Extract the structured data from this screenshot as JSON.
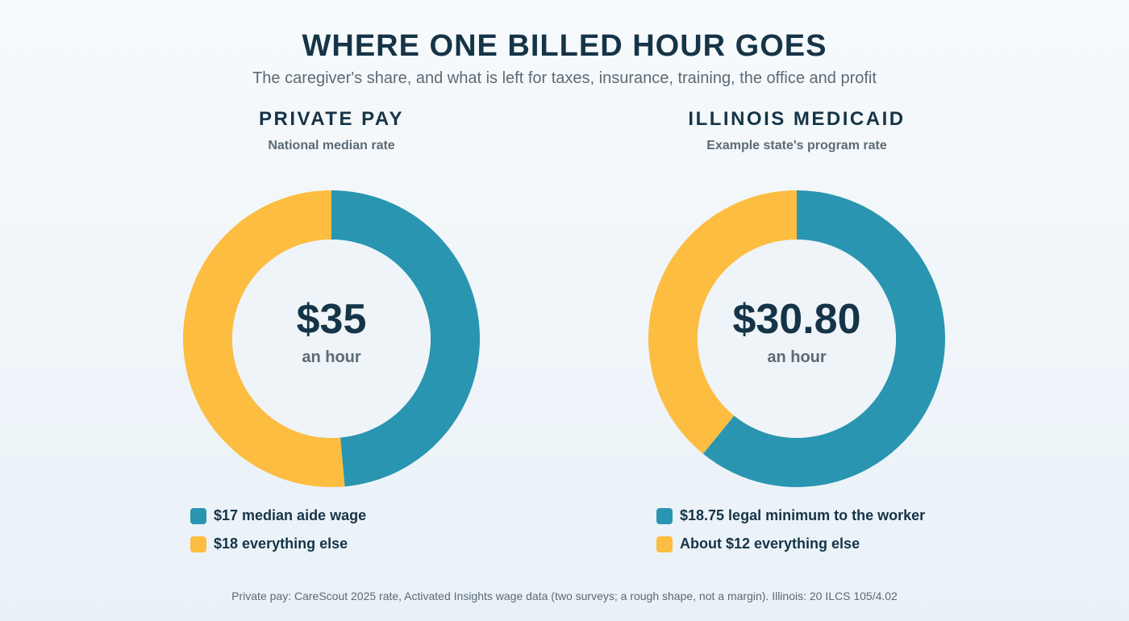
{
  "title": "WHERE ONE BILLED HOUR GOES",
  "subtitle": "The caregiver's share, and what is left for taxes, insurance, training, the office and profit",
  "footnote": "Private pay: CareScout 2025 rate, Activated Insights wage data (two surveys; a rough shape, not a margin). Illinois: 20 ILCS 105/4.02",
  "colors": {
    "worker": "#2a95b0",
    "rest": "#fdbd41",
    "hole": "#eef4f8"
  },
  "chart_data": [
    {
      "type": "pie",
      "title": "PRIVATE PAY",
      "subtitle": "National median rate",
      "center_amount": "$35",
      "center_unit": "an hour",
      "series": [
        {
          "name": "$17 median aide wage",
          "value": 17,
          "color": "#2a95b0"
        },
        {
          "name": "$18 everything else",
          "value": 18,
          "color": "#fdbd41"
        }
      ]
    },
    {
      "type": "pie",
      "title": "ILLINOIS MEDICAID",
      "subtitle": "Example state's program rate",
      "center_amount": "$30.80",
      "center_unit": "an hour",
      "series": [
        {
          "name": "$18.75 legal minimum to the worker",
          "value": 18.75,
          "color": "#2a95b0"
        },
        {
          "name": "About $12 everything else",
          "value": 12.05,
          "color": "#fdbd41"
        }
      ]
    }
  ]
}
